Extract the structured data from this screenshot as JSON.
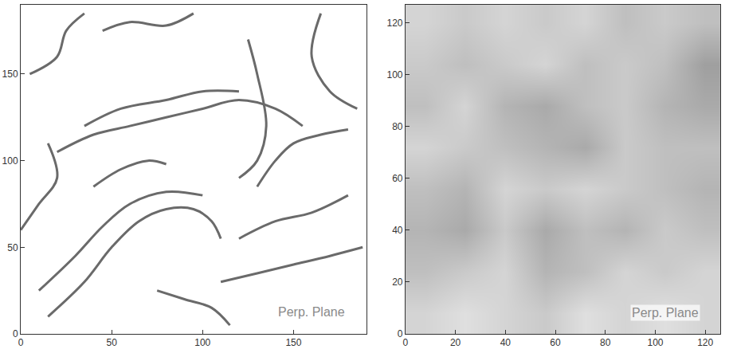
{
  "chart_data": [
    {
      "type": "line",
      "color": "#6a6a6a",
      "xlim": [
        0,
        190
      ],
      "ylim": [
        0,
        190
      ],
      "xticks": [
        0,
        50,
        100,
        150
      ],
      "yticks": [
        0,
        50,
        100,
        150
      ],
      "annotations": [
        {
          "text": "Perp. Plane",
          "x": 160,
          "y": 8
        }
      ],
      "series": [
        {
          "x": [
            15,
            35,
            50,
            65,
            80,
            95,
            105,
            110
          ],
          "y": [
            10,
            30,
            50,
            65,
            72,
            72,
            65,
            55
          ]
        },
        {
          "x": [
            10,
            30,
            45,
            60,
            80,
            100
          ],
          "y": [
            25,
            45,
            62,
            75,
            82,
            80
          ]
        },
        {
          "x": [
            40,
            55,
            70,
            80
          ],
          "y": [
            85,
            95,
            100,
            98
          ]
        },
        {
          "x": [
            20,
            40,
            60,
            80,
            100,
            120,
            140,
            155
          ],
          "y": [
            105,
            115,
            120,
            125,
            130,
            135,
            130,
            120
          ]
        },
        {
          "x": [
            35,
            55,
            80,
            100,
            120
          ],
          "y": [
            120,
            130,
            135,
            140,
            140
          ]
        },
        {
          "x": [
            5,
            20,
            25,
            35
          ],
          "y": [
            150,
            160,
            175,
            185
          ]
        },
        {
          "x": [
            45,
            60,
            80,
            95
          ],
          "y": [
            175,
            180,
            178,
            185
          ]
        },
        {
          "x": [
            125,
            130,
            135,
            130,
            120
          ],
          "y": [
            170,
            150,
            120,
            100,
            90
          ]
        },
        {
          "x": [
            165,
            160,
            170,
            185
          ],
          "y": [
            185,
            160,
            140,
            130
          ]
        },
        {
          "x": [
            110,
            130,
            150,
            170,
            188
          ],
          "y": [
            30,
            35,
            40,
            45,
            50
          ]
        },
        {
          "x": [
            120,
            140,
            160,
            180
          ],
          "y": [
            55,
            65,
            70,
            80
          ]
        },
        {
          "x": [
            75,
            90,
            105,
            115
          ],
          "y": [
            25,
            20,
            15,
            5
          ]
        },
        {
          "x": [
            130,
            140,
            150,
            165,
            180
          ],
          "y": [
            85,
            100,
            110,
            115,
            118
          ]
        },
        {
          "x": [
            0,
            10,
            20,
            15
          ],
          "y": [
            60,
            75,
            90,
            110
          ]
        }
      ]
    },
    {
      "type": "heatmap",
      "xlim": [
        0,
        126
      ],
      "ylim": [
        0,
        127
      ],
      "xticks": [
        0,
        20,
        40,
        60,
        80,
        100,
        120
      ],
      "yticks": [
        0,
        20,
        40,
        60,
        80,
        100,
        120
      ],
      "zlim": [
        0,
        1
      ],
      "annotations": [
        {
          "text": "Perp. Plane",
          "x": 104,
          "y": 5
        }
      ],
      "cell_x": [
        8,
        24,
        40,
        56,
        72,
        88,
        104,
        120
      ],
      "cell_y": [
        8,
        24,
        40,
        56,
        72,
        88,
        104,
        120
      ],
      "cells": [
        [
          0.2,
          0.15,
          0.2,
          0.25,
          0.15,
          0.2,
          0.15,
          0.2
        ],
        [
          0.3,
          0.25,
          0.2,
          0.35,
          0.3,
          0.2,
          0.25,
          0.2
        ],
        [
          0.35,
          0.4,
          0.25,
          0.4,
          0.3,
          0.35,
          0.25,
          0.3
        ],
        [
          0.3,
          0.35,
          0.2,
          0.25,
          0.2,
          0.25,
          0.3,
          0.35
        ],
        [
          0.2,
          0.25,
          0.3,
          0.35,
          0.4,
          0.25,
          0.3,
          0.3
        ],
        [
          0.3,
          0.2,
          0.35,
          0.4,
          0.3,
          0.25,
          0.35,
          0.4
        ],
        [
          0.25,
          0.3,
          0.25,
          0.2,
          0.3,
          0.25,
          0.3,
          0.45
        ],
        [
          0.2,
          0.25,
          0.2,
          0.25,
          0.2,
          0.3,
          0.25,
          0.3
        ]
      ]
    }
  ]
}
